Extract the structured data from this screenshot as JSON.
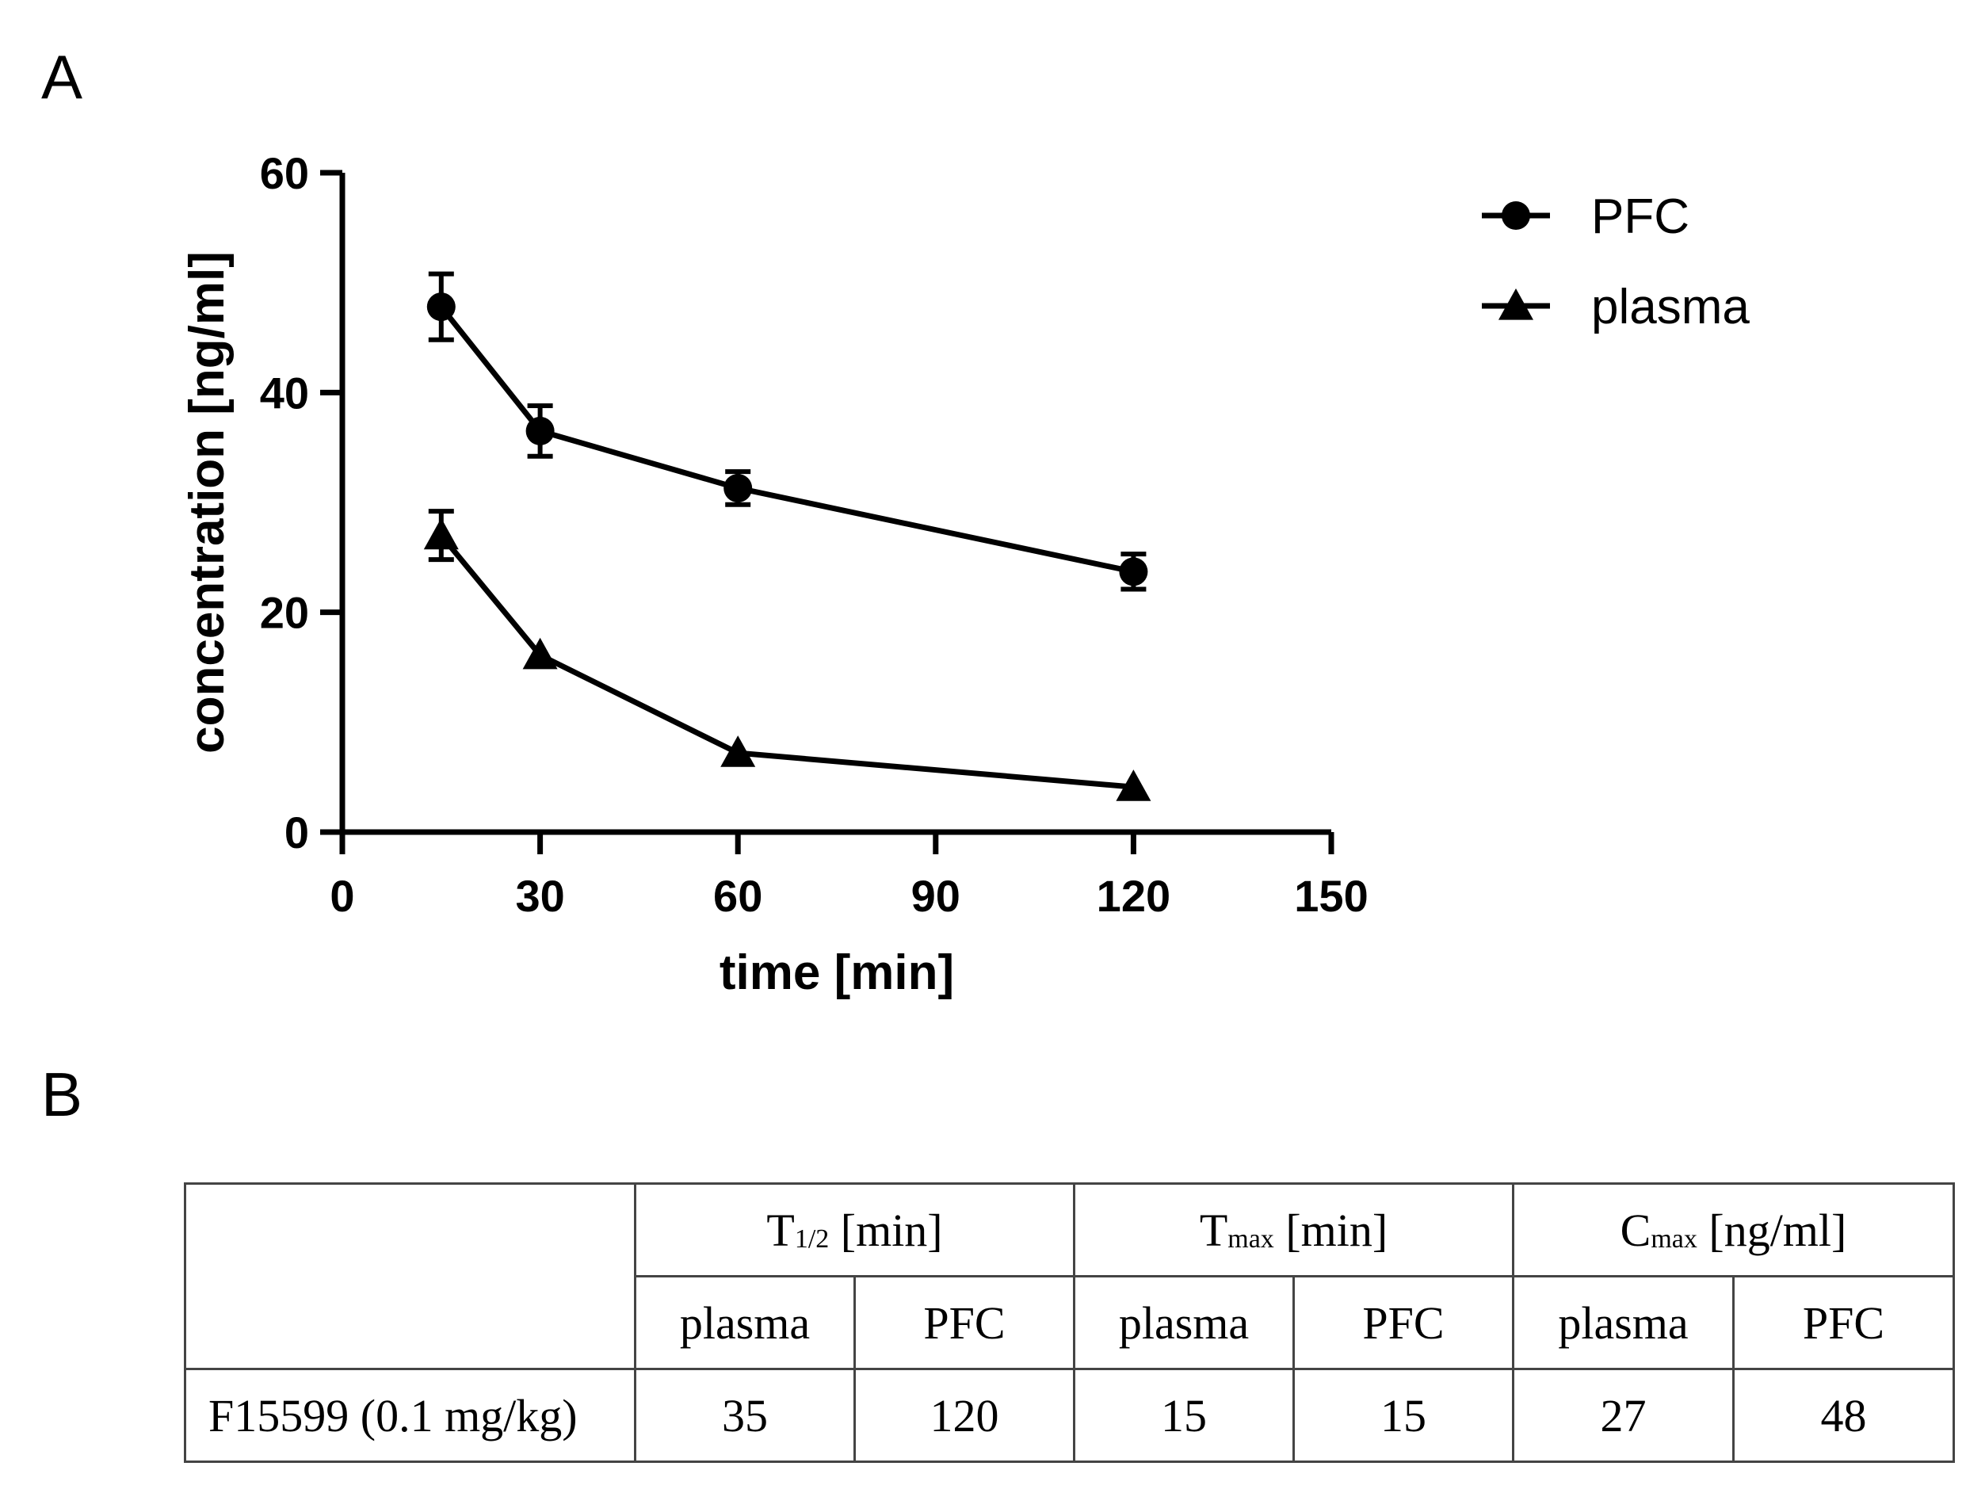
{
  "panels": {
    "a_label": "A",
    "b_label": "B"
  },
  "chart_data": {
    "type": "line",
    "xlabel": "time [min]",
    "ylabel": "concentration [ng/ml]",
    "xlim": [
      0,
      150
    ],
    "ylim": [
      0,
      60
    ],
    "x_ticks": [
      0,
      30,
      60,
      90,
      120,
      150
    ],
    "y_ticks": [
      0,
      20,
      40,
      60
    ],
    "grid": false,
    "legend_position": "top-right, outside plot",
    "series": [
      {
        "name": "PFC",
        "marker": "circle",
        "x": [
          15,
          30,
          60,
          120
        ],
        "values": [
          47.8,
          36.5,
          31.3,
          23.7
        ],
        "error": [
          3.0,
          2.3,
          1.5,
          1.6
        ]
      },
      {
        "name": "plasma",
        "marker": "triangle",
        "x": [
          15,
          30,
          60,
          120
        ],
        "values": [
          27.0,
          16.1,
          7.2,
          4.1
        ],
        "error": [
          2.2,
          0,
          0,
          0
        ]
      }
    ]
  },
  "table": {
    "groups": [
      {
        "symbol": "T",
        "sub": "1/2",
        "unit": "[min]"
      },
      {
        "symbol": "T",
        "sub": "max",
        "unit": "[min]"
      },
      {
        "symbol": "C",
        "sub": "max",
        "unit": "[ng/ml]"
      }
    ],
    "subheaders": [
      "plasma",
      "PFC",
      "plasma",
      "PFC",
      "plasma",
      "PFC"
    ],
    "row": {
      "label": "F15599 (0.1 mg/kg)",
      "values": [
        "35",
        "120",
        "15",
        "15",
        "27",
        "48"
      ]
    }
  }
}
